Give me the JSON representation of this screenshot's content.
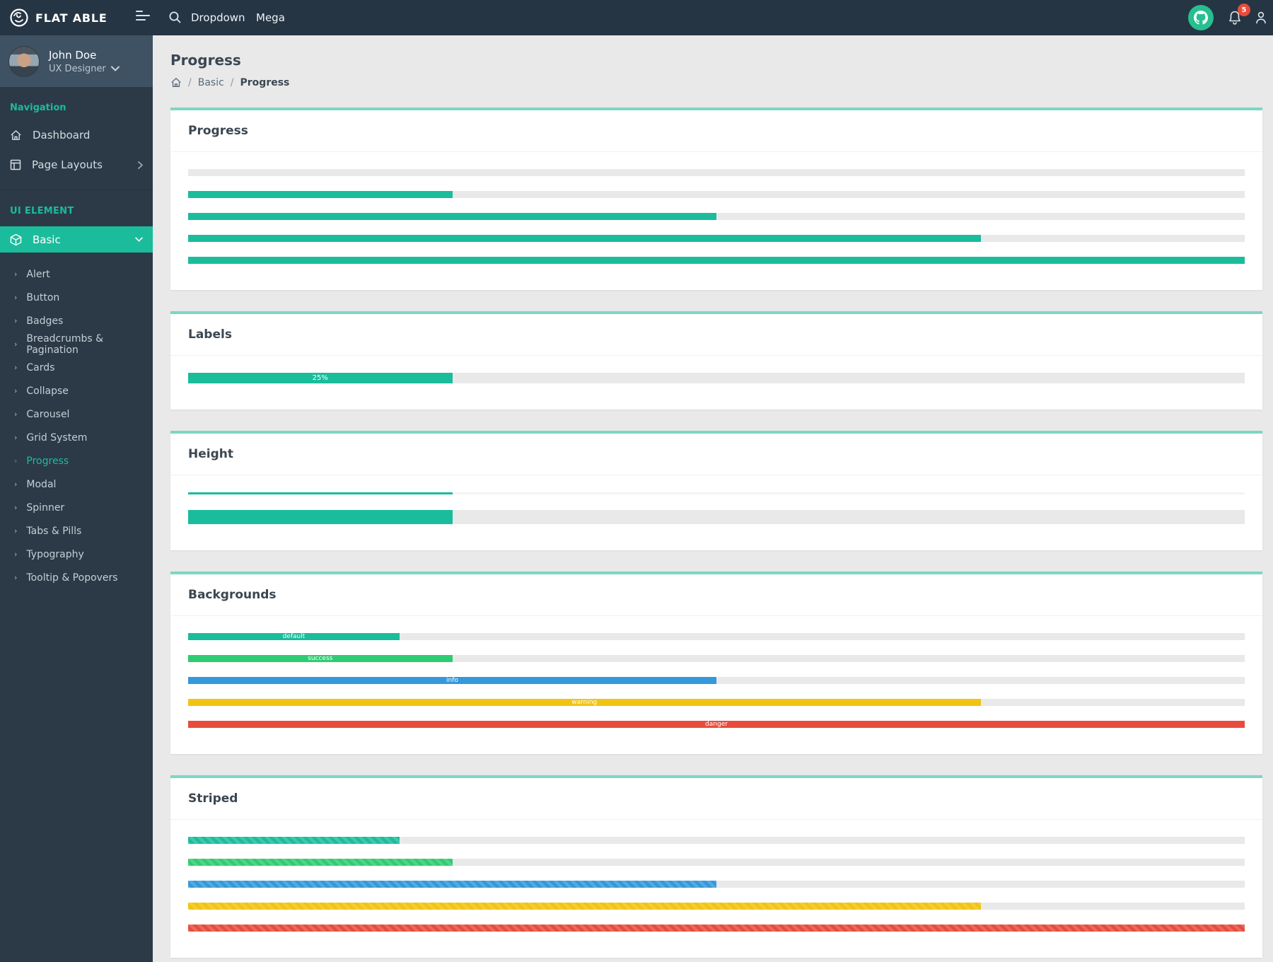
{
  "navbar": {
    "brand": "FLAT ABLE",
    "items": [
      {
        "label": "Dropdown"
      },
      {
        "label": "Mega"
      }
    ],
    "notification_count": "5"
  },
  "user": {
    "name": "John Doe",
    "role": "UX Designer"
  },
  "sidebar": {
    "section1_label": "Navigation",
    "items": [
      {
        "label": "Dashboard"
      },
      {
        "label": "Page Layouts"
      }
    ],
    "section2_label": "UI ELEMENT",
    "active_item": {
      "label": "Basic"
    },
    "submenu": [
      "Alert",
      "Button",
      "Badges",
      "Breadcrumbs & Pagination",
      "Cards",
      "Collapse",
      "Carousel",
      "Grid System",
      "Progress",
      "Modal",
      "Spinner",
      "Tabs & Pills",
      "Typography",
      "Tooltip & Popovers"
    ],
    "submenu_active": "Progress"
  },
  "page": {
    "title": "Progress",
    "breadcrumb_parent": "Basic",
    "breadcrumb_current": "Progress"
  },
  "colors": {
    "accent": "#1abc9c",
    "navbar_bg": "#263544",
    "sidebar_bg": "#2c3a47",
    "user_panel_bg": "#3f5264",
    "github_button": "#26bf8f",
    "badge": "#e74c3c",
    "track": "#e9e9e9",
    "variants": {
      "default": "#1abc9c",
      "success": "#2ecc71",
      "info": "#3498db",
      "warning": "#f1c40f",
      "danger": "#e74c3c"
    }
  },
  "cards": [
    {
      "id": "progress",
      "title": "Progress",
      "striped": false,
      "bars": [
        {
          "value": 0,
          "variant": "default"
        },
        {
          "value": 25,
          "variant": "default"
        },
        {
          "value": 50,
          "variant": "default"
        },
        {
          "value": 75,
          "variant": "default"
        },
        {
          "value": 100,
          "variant": "default"
        }
      ]
    },
    {
      "id": "labels",
      "title": "Labels",
      "striped": false,
      "bars": [
        {
          "value": 25,
          "variant": "default",
          "label": "25%",
          "size": "label"
        }
      ]
    },
    {
      "id": "height",
      "title": "Height",
      "striped": false,
      "bars": [
        {
          "value": 25,
          "variant": "default",
          "size": "thin"
        },
        {
          "value": 25,
          "variant": "default",
          "size": "thick"
        }
      ]
    },
    {
      "id": "backgrounds",
      "title": "Backgrounds",
      "striped": false,
      "bars": [
        {
          "value": 20,
          "variant": "default",
          "label": "default"
        },
        {
          "value": 25,
          "variant": "success",
          "label": "success"
        },
        {
          "value": 50,
          "variant": "info",
          "label": "info"
        },
        {
          "value": 75,
          "variant": "warning",
          "label": "warning"
        },
        {
          "value": 100,
          "variant": "danger",
          "label": "danger"
        }
      ]
    },
    {
      "id": "striped",
      "title": "Striped",
      "striped": true,
      "bars": [
        {
          "value": 20,
          "variant": "default"
        },
        {
          "value": 25,
          "variant": "success"
        },
        {
          "value": 50,
          "variant": "info"
        },
        {
          "value": 75,
          "variant": "warning"
        },
        {
          "value": 100,
          "variant": "danger"
        }
      ]
    }
  ]
}
